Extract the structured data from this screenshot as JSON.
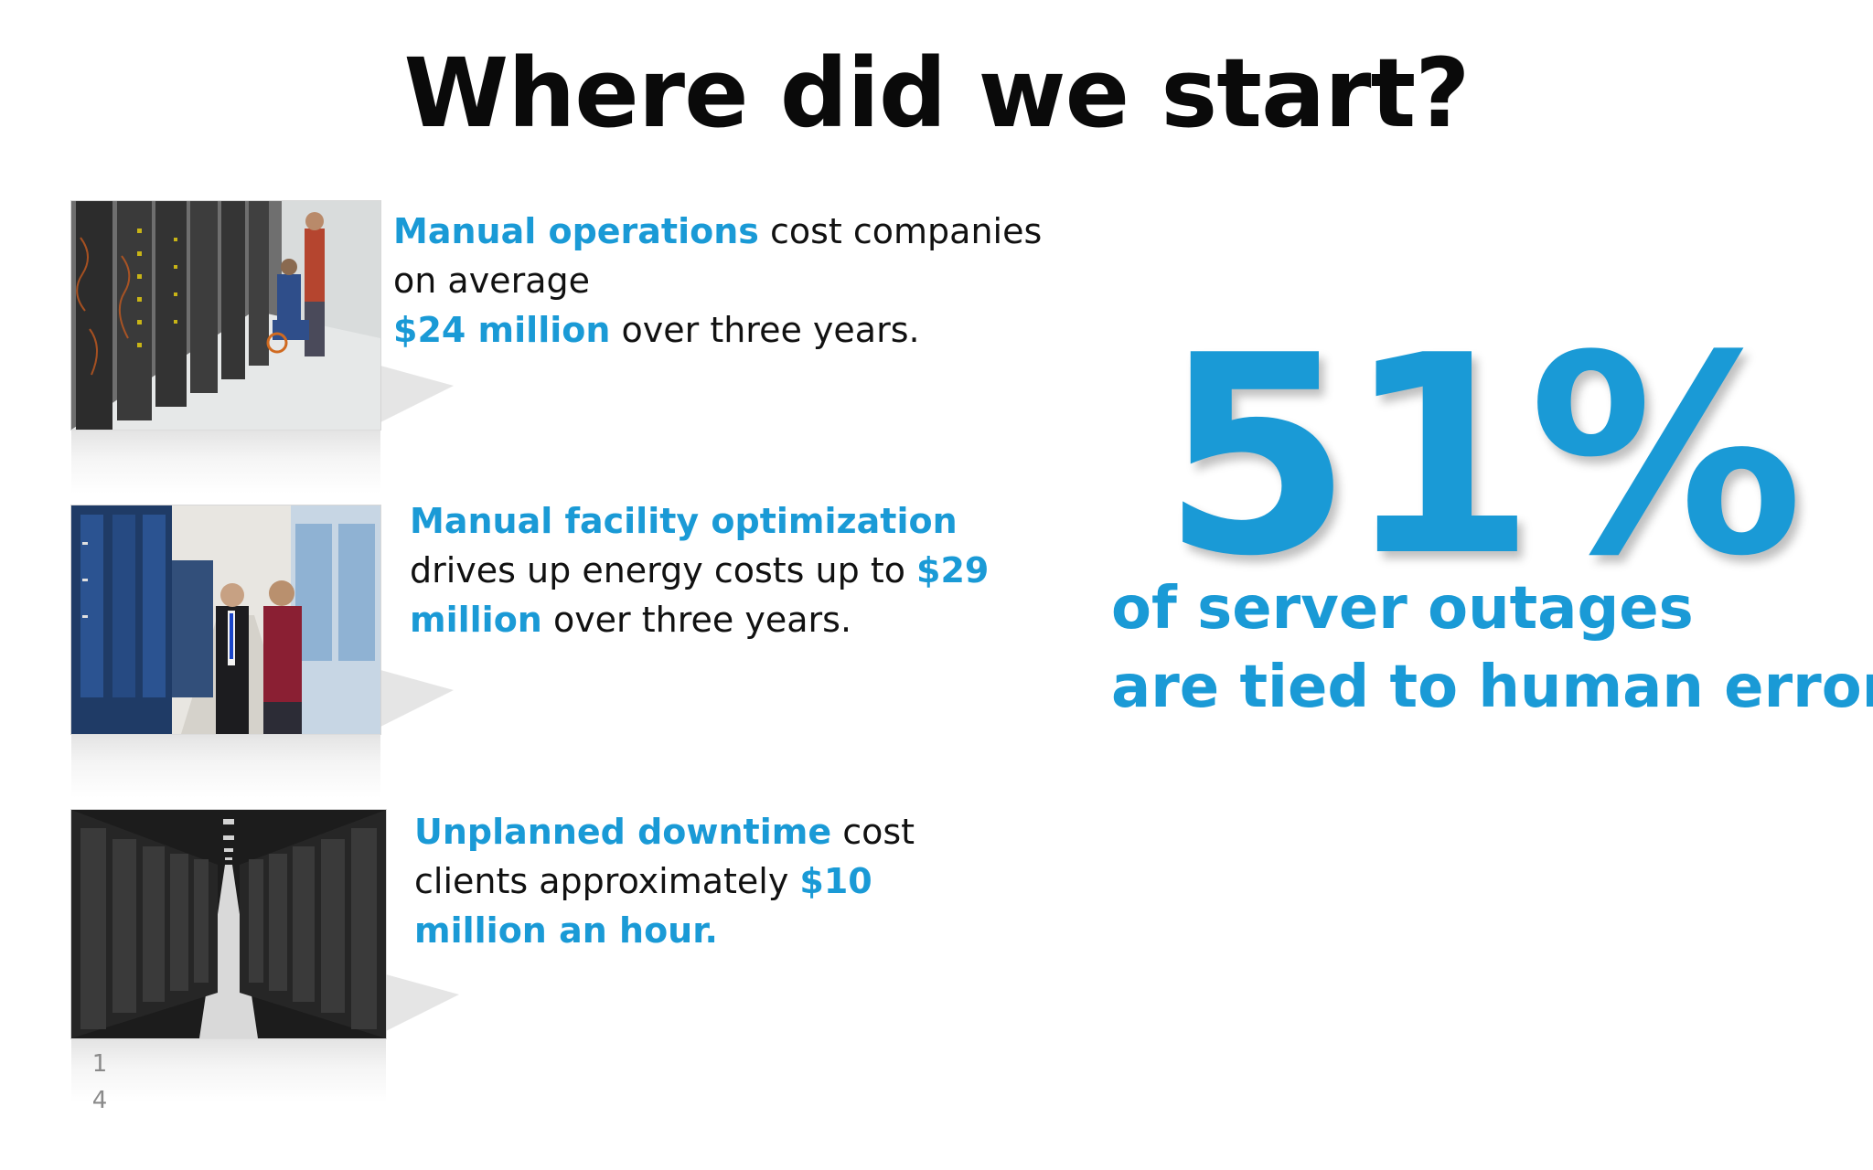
{
  "slide": {
    "title": "Where did we start?",
    "items": [
      {
        "photo_subject": "engineers in server room",
        "highlight1": "Manual operations",
        "text1": " cost companies",
        "text2": "on average",
        "highlight2": "$24 million",
        "text3": " over three years."
      },
      {
        "photo_subject": "two men beside server racks",
        "highlight1": "Manual facility optimization",
        "text1": "drives up energy costs up to ",
        "highlight2": "$29",
        "highlight3": "million",
        "text2": " over three years."
      },
      {
        "photo_subject": "data center aisle",
        "highlight1": "Unplanned downtime",
        "text1": " cost",
        "text2": "clients approximately ",
        "highlight2": "$10",
        "highlight3": "million an hour."
      }
    ],
    "stat": {
      "value": "51%",
      "line1": "of server outages",
      "line2": "are tied to human error"
    },
    "page_number_line1": "1",
    "page_number_line2": "4"
  },
  "colors": {
    "accent": "#1a9ad6",
    "text": "#111111"
  }
}
